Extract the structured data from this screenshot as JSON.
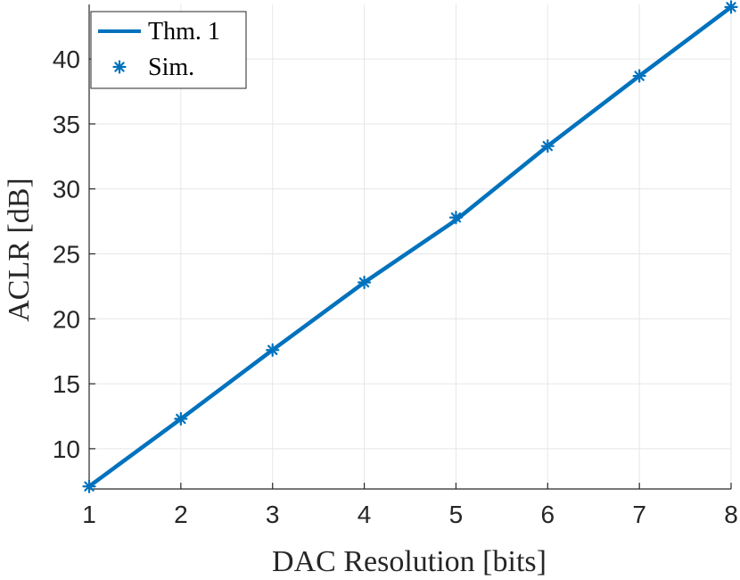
{
  "chart_data": {
    "type": "line",
    "xlabel": "DAC Resolution [bits]",
    "ylabel": "ACLR [dB]",
    "xlim": [
      1,
      8
    ],
    "ylim": [
      6.9,
      44.2
    ],
    "x_ticks": [
      1,
      2,
      3,
      4,
      5,
      6,
      7,
      8
    ],
    "y_ticks": [
      10,
      15,
      20,
      25,
      30,
      35,
      40
    ],
    "grid": true,
    "legend_position": "top-left",
    "series": [
      {
        "name": "Thm. 1",
        "style": "line",
        "color": "#0072bd",
        "x": [
          1,
          2,
          3,
          4,
          5,
          6,
          7,
          8
        ],
        "y": [
          7.1,
          12.3,
          17.6,
          22.8,
          27.6,
          33.3,
          38.7,
          44.0
        ]
      },
      {
        "name": "Sim.",
        "style": "asterisk-marker",
        "color": "#0072bd",
        "x": [
          1,
          2,
          3,
          4,
          5,
          6,
          7,
          8
        ],
        "y": [
          7.1,
          12.3,
          17.6,
          22.8,
          27.8,
          33.3,
          38.7,
          44.0
        ]
      }
    ]
  }
}
